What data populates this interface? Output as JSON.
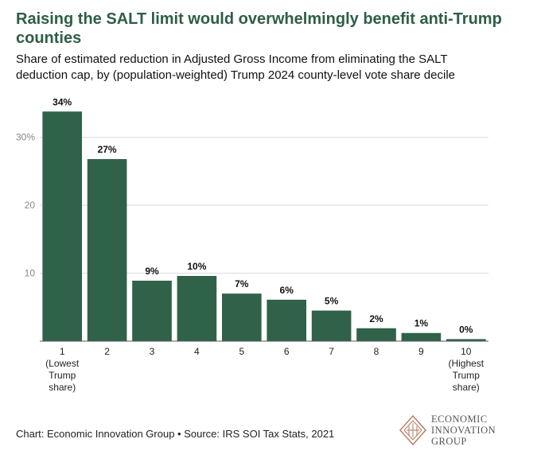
{
  "title_line1": "Raising the SALT limit would overwhelmingly benefit anti-Trump",
  "title_line2": "counties",
  "subtitle_line1": "Share of estimated reduction in Adjusted Gross Income from eliminating the SALT",
  "subtitle_line2": "deduction cap, by (population-weighted) Trump 2024 county-level vote share decile",
  "footer": "Chart: Economic Innovation Group • Source: IRS SOI Tax Stats, 2021",
  "logo": {
    "line1": "ECONOMIC",
    "line2": "INNOVATION",
    "line3": "GROUP"
  },
  "colors": {
    "bar": "#2f6249",
    "title": "#2e5e46",
    "grid": "#d9d9d9",
    "logo": "#b07a5e"
  },
  "chart_data": {
    "type": "bar",
    "title": "Raising the SALT limit would overwhelmingly benefit anti-Trump counties",
    "xlabel": "",
    "ylabel": "",
    "ylim": [
      0,
      35
    ],
    "yticks": [
      {
        "value": 10,
        "label": "10"
      },
      {
        "value": 20,
        "label": "20"
      },
      {
        "value": 30,
        "label": "30%"
      }
    ],
    "categories": [
      [
        "1",
        "(Lowest",
        "Trump",
        "share)"
      ],
      [
        "2"
      ],
      [
        "3"
      ],
      [
        "4"
      ],
      [
        "5"
      ],
      [
        "6"
      ],
      [
        "7"
      ],
      [
        "8"
      ],
      [
        "9"
      ],
      [
        "10",
        "(Highest",
        "Trump",
        "share)"
      ]
    ],
    "values": [
      33.8,
      26.8,
      8.9,
      9.6,
      7.0,
      6.1,
      4.5,
      1.9,
      1.2,
      0.3
    ],
    "data_labels": [
      "34%",
      "27%",
      "9%",
      "10%",
      "7%",
      "6%",
      "5%",
      "2%",
      "1%",
      "0%"
    ]
  }
}
